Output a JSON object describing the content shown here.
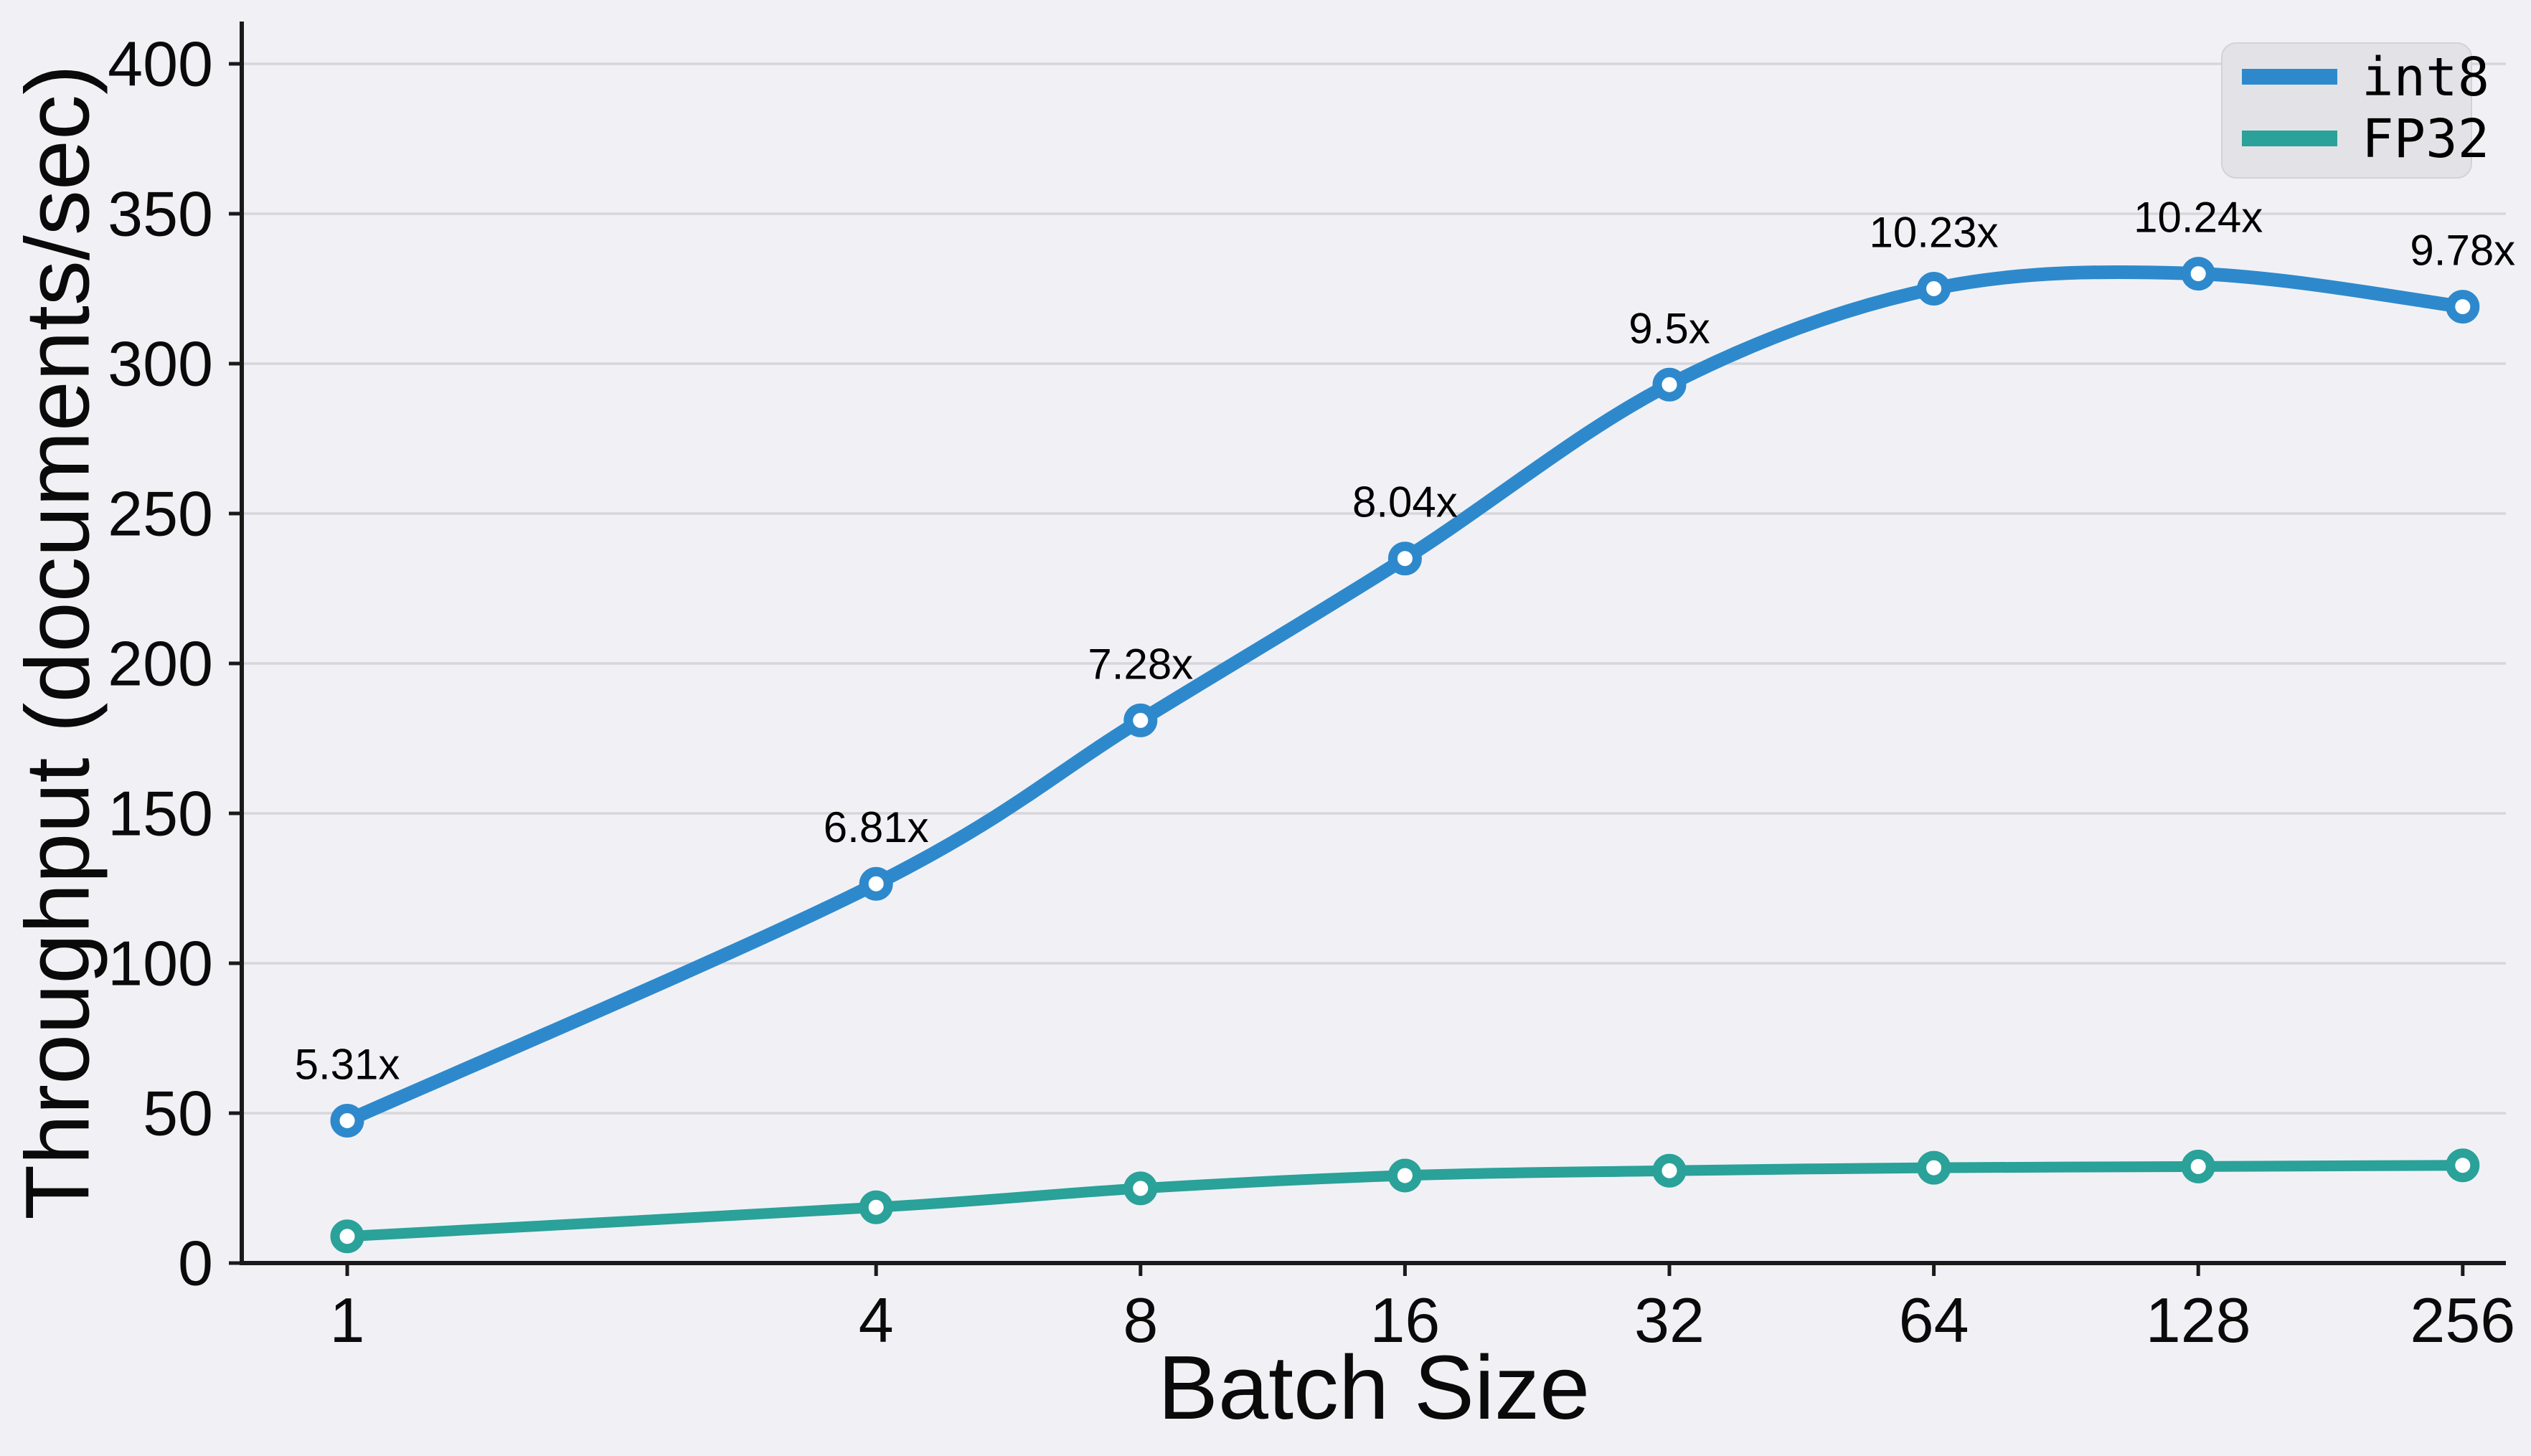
{
  "figure": {
    "background_color": "#f1f1f5",
    "grid_color": "#d6d6db",
    "axis_color": "#1a1a1a",
    "text_color": "#0a0a0a"
  },
  "legend": {
    "position": "upper right",
    "background_color": "#e3e3e7",
    "border_color": "#d2d2d8",
    "entries": [
      {
        "label": "int8",
        "color": "#2e89cc"
      },
      {
        "label": "FP32",
        "color": "#2aa199"
      }
    ]
  },
  "chart_data": {
    "type": "line",
    "title": "",
    "xlabel": "Batch Size",
    "ylabel": "Throughput (documents/sec)",
    "x_scale": "log2",
    "categories": [
      1,
      4,
      8,
      16,
      32,
      64,
      128,
      256
    ],
    "x_tick_labels": [
      "1",
      "4",
      "8",
      "16",
      "32",
      "64",
      "128",
      "256"
    ],
    "y_ticks": [
      0,
      50,
      100,
      150,
      200,
      250,
      300,
      350,
      400
    ],
    "y_tick_labels": [
      "0",
      "50",
      "100",
      "150",
      "200",
      "250",
      "300",
      "350",
      "400"
    ],
    "ylim": [
      0,
      414
    ],
    "grid": "horizontal",
    "legend_position": "upper right",
    "series": [
      {
        "name": "int8",
        "color": "#2e89cc",
        "line_width": 19,
        "values": [
          47.5,
          126.5,
          181.0,
          235.0,
          293.0,
          325.0,
          330.0,
          319.0
        ]
      },
      {
        "name": "FP32",
        "color": "#2aa199",
        "line_width": 15,
        "values": [
          8.9,
          18.6,
          24.9,
          29.2,
          30.8,
          31.8,
          32.2,
          32.6
        ]
      }
    ],
    "annotations": [
      {
        "x": 1,
        "series": "int8",
        "label": "5.31x"
      },
      {
        "x": 4,
        "series": "int8",
        "label": "6.81x"
      },
      {
        "x": 8,
        "series": "int8",
        "label": "7.28x"
      },
      {
        "x": 16,
        "series": "int8",
        "label": "8.04x"
      },
      {
        "x": 32,
        "series": "int8",
        "label": "9.5x"
      },
      {
        "x": 64,
        "series": "int8",
        "label": "10.23x"
      },
      {
        "x": 128,
        "series": "int8",
        "label": "10.24x"
      },
      {
        "x": 256,
        "series": "int8",
        "label": "9.78x"
      }
    ]
  }
}
